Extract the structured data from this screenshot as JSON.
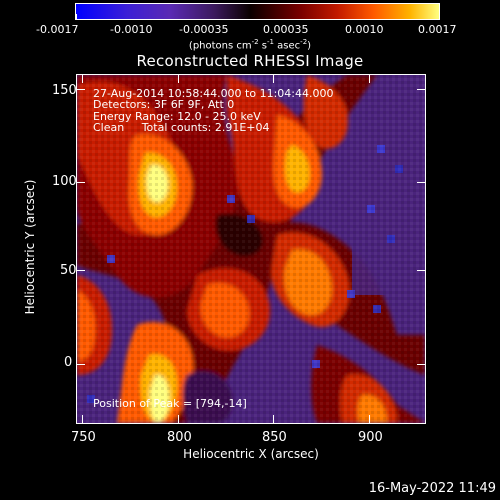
{
  "colorbar": {
    "ticks": [
      "-0.0017",
      "-0.0010",
      "-0.00035",
      "0.00035",
      "0.0010",
      "0.0017"
    ],
    "unit_text": "(photons cm",
    "unit_sup1": "-2",
    "unit_mid": " s",
    "unit_sup2": "-1",
    "unit_mid2": " asec",
    "unit_sup3": "-2",
    "unit_end": ")"
  },
  "title": "Reconstructed RHESSI Image",
  "info": {
    "line1": "27-Aug-2014 10:58:44.000 to 11:04:44.000",
    "line2": "Detectors: 3F 6F 9F, Att 0",
    "line3": "Energy Range: 12.0 - 25.0 keV",
    "line4": "Clean     Total counts: 2.91E+04",
    "peak": "Position of Peak = [794,-14]"
  },
  "axes": {
    "xlabel": "Heliocentric X (arcsec)",
    "ylabel": "Heliocentric Y (arcsec)",
    "xticks": [
      "750",
      "800",
      "850",
      "900"
    ],
    "yticks": [
      "150",
      "100",
      "50",
      "0"
    ]
  },
  "timestamp": "16-May-2022 11:49"
}
